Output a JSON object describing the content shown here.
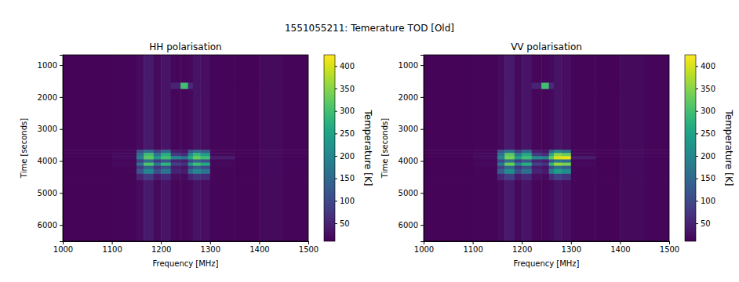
{
  "chart_data": {
    "type": "heatmap",
    "title": "1551055211: Temerature TOD [Old]",
    "panels": [
      {
        "title": "HH polarisation",
        "x_label": "Frequency [MHz]",
        "y_label": "Time [seconds]",
        "xlim": [
          1000,
          1500
        ],
        "xticks": [
          1000,
          1100,
          1200,
          1300,
          1400,
          1500
        ],
        "ylim": [
          680,
          6510
        ],
        "yticks": [
          1000,
          2000,
          3000,
          4000,
          5000,
          6000
        ],
        "x_edges": [
          1000,
          1100,
          1150,
          1165,
          1185,
          1200,
          1220,
          1240,
          1255,
          1265,
          1280,
          1300,
          1350,
          1400,
          1450,
          1500
        ],
        "y_edges": [
          680,
          1550,
          1750,
          3650,
          3750,
          3850,
          3950,
          4050,
          4150,
          4250,
          4400,
          4600,
          6510
        ],
        "cells": [
          [
            14,
            16,
            22,
            38,
            20,
            32,
            18,
            18,
            20,
            30,
            26,
            16,
            14,
            20,
            15
          ],
          [
            14,
            16,
            22,
            38,
            20,
            32,
            50,
            300,
            60,
            30,
            26,
            16,
            14,
            20,
            15
          ],
          [
            14,
            16,
            22,
            38,
            20,
            32,
            18,
            18,
            20,
            30,
            26,
            16,
            14,
            20,
            15
          ],
          [
            14,
            18,
            110,
            160,
            90,
            150,
            40,
            30,
            120,
            160,
            130,
            18,
            14,
            20,
            15
          ],
          [
            14,
            20,
            160,
            300,
            170,
            270,
            80,
            60,
            210,
            290,
            240,
            20,
            14,
            20,
            15
          ],
          [
            14,
            22,
            190,
            320,
            230,
            300,
            200,
            170,
            260,
            330,
            300,
            40,
            14,
            20,
            15
          ],
          [
            14,
            18,
            90,
            150,
            80,
            120,
            50,
            40,
            100,
            140,
            110,
            18,
            14,
            20,
            15
          ],
          [
            14,
            20,
            170,
            310,
            180,
            280,
            90,
            70,
            230,
            300,
            260,
            20,
            14,
            20,
            15
          ],
          [
            14,
            18,
            80,
            140,
            70,
            110,
            40,
            30,
            90,
            130,
            100,
            18,
            14,
            20,
            15
          ],
          [
            14,
            18,
            120,
            200,
            110,
            170,
            50,
            40,
            150,
            200,
            170,
            18,
            14,
            20,
            15
          ],
          [
            14,
            16,
            50,
            80,
            40,
            60,
            25,
            22,
            50,
            70,
            60,
            16,
            14,
            20,
            15
          ],
          [
            14,
            16,
            22,
            38,
            20,
            32,
            18,
            18,
            20,
            30,
            26,
            16,
            14,
            20,
            15
          ]
        ],
        "colorbar": {
          "label": "Temperature [K]",
          "range": [
            10,
            425
          ],
          "ticks": [
            50,
            100,
            150,
            200,
            250,
            300,
            350,
            400
          ]
        }
      },
      {
        "title": "VV polarisation",
        "x_label": "Frequency [MHz]",
        "y_label": "Time [seconds]",
        "xlim": [
          1000,
          1500
        ],
        "xticks": [
          1000,
          1100,
          1200,
          1300,
          1400,
          1500
        ],
        "ylim": [
          680,
          6510
        ],
        "yticks": [
          1000,
          2000,
          3000,
          4000,
          5000,
          6000
        ],
        "x_edges": [
          1000,
          1100,
          1150,
          1165,
          1185,
          1200,
          1220,
          1240,
          1255,
          1265,
          1280,
          1300,
          1350,
          1400,
          1450,
          1500
        ],
        "y_edges": [
          680,
          1550,
          1750,
          3650,
          3750,
          3850,
          3950,
          4050,
          4150,
          4250,
          4400,
          4600,
          6510
        ],
        "cells": [
          [
            14,
            16,
            22,
            38,
            20,
            32,
            18,
            18,
            20,
            30,
            26,
            16,
            14,
            20,
            15
          ],
          [
            14,
            16,
            22,
            38,
            20,
            32,
            50,
            300,
            60,
            30,
            26,
            16,
            14,
            20,
            15
          ],
          [
            14,
            16,
            22,
            38,
            20,
            32,
            18,
            18,
            20,
            30,
            26,
            16,
            14,
            20,
            15
          ],
          [
            14,
            18,
            120,
            170,
            90,
            150,
            40,
            30,
            140,
            200,
            170,
            18,
            14,
            20,
            15
          ],
          [
            14,
            20,
            170,
            320,
            180,
            260,
            80,
            60,
            260,
            350,
            330,
            20,
            14,
            20,
            15
          ],
          [
            14,
            22,
            200,
            340,
            240,
            300,
            210,
            190,
            320,
            400,
            410,
            40,
            14,
            20,
            15
          ],
          [
            14,
            18,
            100,
            160,
            80,
            120,
            50,
            40,
            120,
            170,
            150,
            18,
            14,
            20,
            15
          ],
          [
            14,
            20,
            180,
            330,
            190,
            270,
            90,
            70,
            280,
            360,
            340,
            20,
            14,
            20,
            15
          ],
          [
            14,
            18,
            90,
            150,
            70,
            110,
            40,
            30,
            110,
            160,
            130,
            18,
            14,
            20,
            15
          ],
          [
            14,
            18,
            130,
            210,
            110,
            160,
            50,
            40,
            180,
            240,
            210,
            18,
            14,
            20,
            15
          ],
          [
            14,
            16,
            55,
            85,
            40,
            60,
            25,
            22,
            60,
            85,
            70,
            16,
            14,
            20,
            15
          ],
          [
            14,
            16,
            22,
            38,
            20,
            32,
            18,
            18,
            20,
            30,
            26,
            16,
            14,
            20,
            15
          ]
        ],
        "colorbar": {
          "label": "Temperature [K]",
          "range": [
            10,
            425
          ],
          "ticks": [
            50,
            100,
            150,
            200,
            250,
            300,
            350,
            400
          ]
        }
      }
    ]
  }
}
